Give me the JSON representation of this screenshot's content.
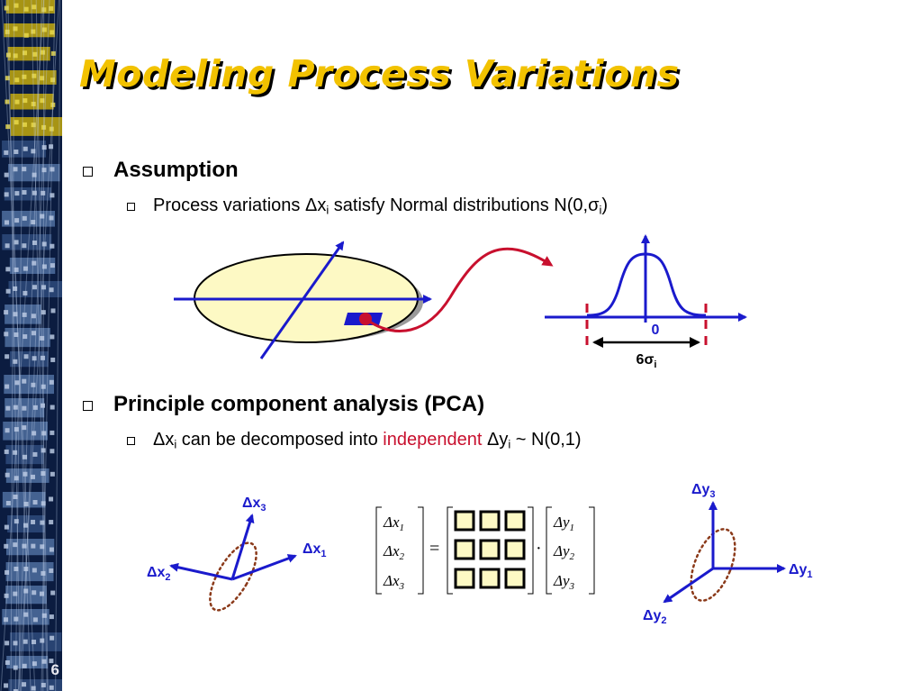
{
  "slide": {
    "title": "Modeling Process Variations",
    "number": "6"
  },
  "bullets": {
    "assumption": {
      "label": "Assumption",
      "sub": {
        "t1": "Process variations Δx",
        "s1": "i",
        "t2": " satisfy Normal distributions N(0,σ",
        "s2": "i",
        "t3": ")"
      }
    },
    "pca": {
      "label": "Principle component analysis (PCA)",
      "sub": {
        "t1": "Δx",
        "s1": "i",
        "t2": " can be decomposed into ",
        "highlight": "independent",
        "t3": " Δy",
        "s3": "i",
        "t4": " ~ N(0,1)"
      }
    }
  },
  "figure1": {
    "zero_label": "0",
    "width_label": "6σ",
    "width_sub": "i"
  },
  "figure2": {
    "x_axes": [
      {
        "base": "Δx",
        "sub": "1"
      },
      {
        "base": "Δx",
        "sub": "2"
      },
      {
        "base": "Δx",
        "sub": "3"
      }
    ],
    "y_axes": [
      {
        "base": "Δy",
        "sub": "1"
      },
      {
        "base": "Δy",
        "sub": "2"
      },
      {
        "base": "Δy",
        "sub": "3"
      }
    ],
    "equation": {
      "left": [
        {
          "base": "Δx",
          "sub": "1"
        },
        {
          "base": "Δx",
          "sub": "2"
        },
        {
          "base": "Δx",
          "sub": "3"
        }
      ],
      "equals": "=",
      "dot": "·",
      "right": [
        {
          "base": "Δy",
          "sub": "1"
        },
        {
          "base": "Δy",
          "sub": "2"
        },
        {
          "base": "Δy",
          "sub": "3"
        }
      ]
    }
  },
  "colors": {
    "title": "#f2c200",
    "axis_blue": "#1a1acc",
    "curve_red": "#c8102e",
    "ellipse_fill": "#fdf9c4",
    "dotted_brown": "#8b3a1a"
  },
  "icons": {
    "bullet": "hollow-square-icon",
    "arrow": "arrow-head-icon"
  }
}
